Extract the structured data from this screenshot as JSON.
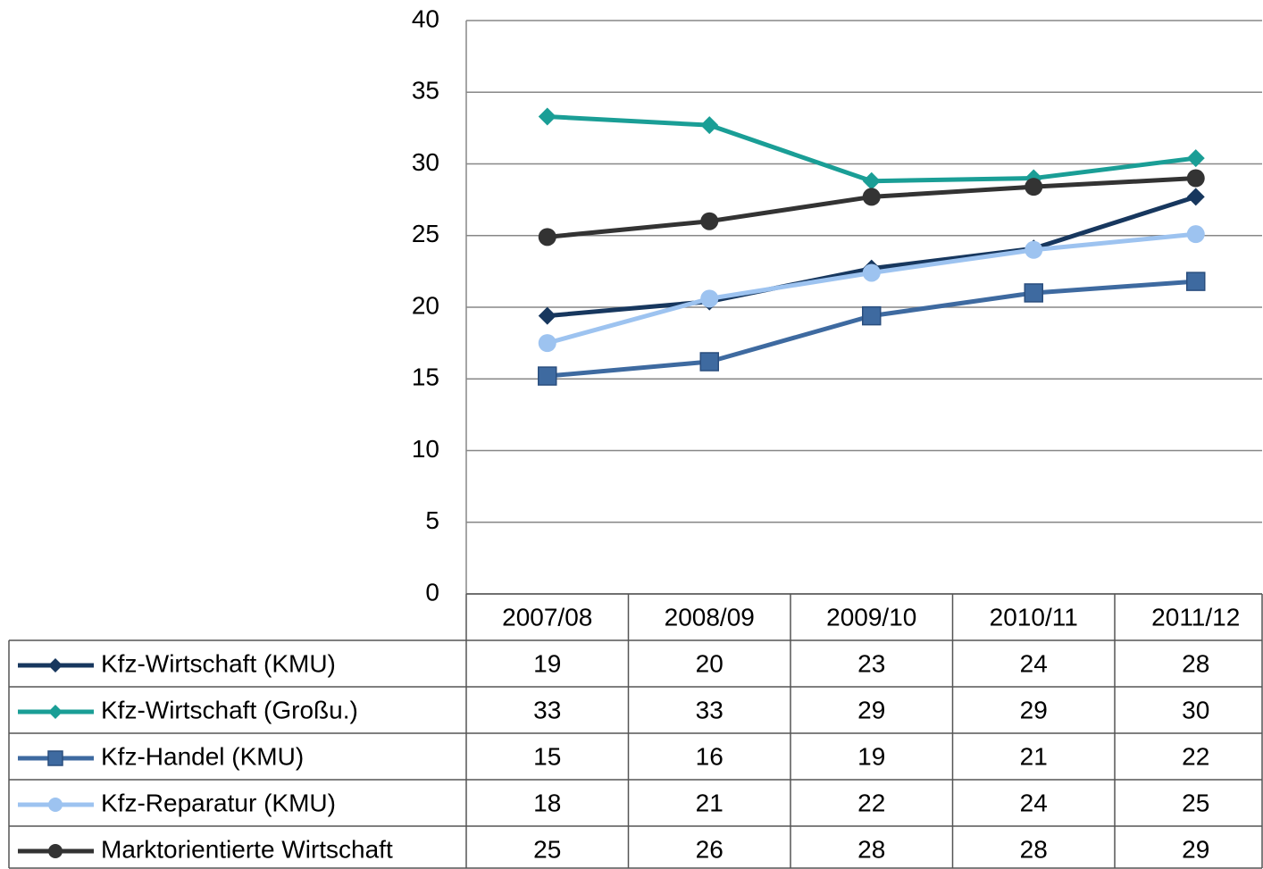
{
  "chart_data": {
    "type": "line",
    "categories": [
      "2007/08",
      "2008/09",
      "2009/10",
      "2010/11",
      "2011/12"
    ],
    "ylim": [
      0,
      40
    ],
    "yticks": [
      0,
      5,
      10,
      15,
      20,
      25,
      30,
      35,
      40
    ],
    "grid": true,
    "series": [
      {
        "name": "Kfz-Wirtschaft (KMU)",
        "color": "#17375e",
        "marker": "diamond",
        "values": [
          19.4,
          20.4,
          22.7,
          24.1,
          27.7
        ],
        "value_labels": [
          "19",
          "20",
          "23",
          "24",
          "28"
        ]
      },
      {
        "name": "Kfz-Wirtschaft (Großu.)",
        "color": "#1a9e96",
        "marker": "diamond",
        "values": [
          33.3,
          32.7,
          28.8,
          29.0,
          30.4
        ],
        "value_labels": [
          "33",
          "33",
          "29",
          "29",
          "30"
        ]
      },
      {
        "name": "Kfz-Handel (KMU)",
        "color": "#3e6aa0",
        "marker": "square",
        "values": [
          15.2,
          16.2,
          19.4,
          21.0,
          21.8
        ],
        "value_labels": [
          "15",
          "16",
          "19",
          "21",
          "22"
        ]
      },
      {
        "name": "Kfz-Reparatur (KMU)",
        "color": "#9dc3f0",
        "marker": "circle",
        "values": [
          17.5,
          20.6,
          22.4,
          24.0,
          25.1
        ],
        "value_labels": [
          "18",
          "21",
          "22",
          "24",
          "25"
        ]
      },
      {
        "name": "Marktorientierte Wirtschaft",
        "color": "#333333",
        "marker": "circle",
        "values": [
          24.9,
          26.0,
          27.7,
          28.4,
          29.0
        ],
        "value_labels": [
          "25",
          "26",
          "28",
          "28",
          "29"
        ]
      }
    ]
  }
}
